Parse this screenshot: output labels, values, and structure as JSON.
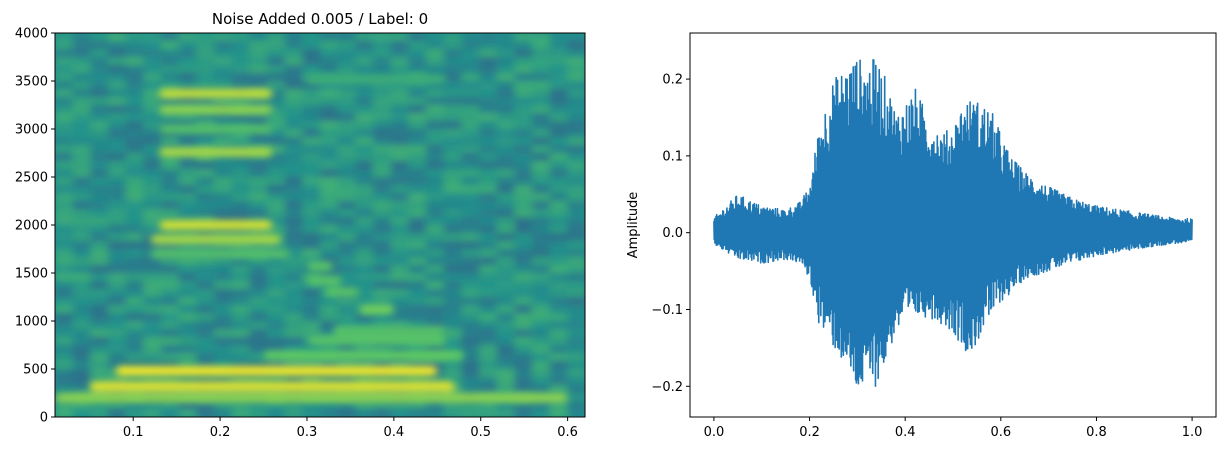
{
  "figure": {
    "spectrogram_title": "Noise Added 0.005 / Label: 0",
    "waveform_ylabel": "Amplitude"
  },
  "colors": {
    "axis": "#000000",
    "waveform_line": "#1f77b4",
    "viridis_low": "#440154",
    "viridis_mid": "#21918c",
    "viridis_high": "#fde725"
  },
  "chart_data": [
    {
      "type": "heatmap",
      "title": "Noise Added 0.005 / Label: 0",
      "xlabel": "",
      "ylabel": "",
      "xlim": [
        0.01,
        0.62
      ],
      "ylim": [
        0,
        4000
      ],
      "xticks": [
        0.1,
        0.2,
        0.3,
        0.4,
        0.5,
        0.6
      ],
      "xtick_labels": [
        "0.1",
        "0.2",
        "0.3",
        "0.4",
        "0.5",
        "0.6"
      ],
      "yticks": [
        0,
        500,
        1000,
        1500,
        2000,
        2500,
        3000,
        3500,
        4000
      ],
      "ytick_labels": [
        "0",
        "500",
        "1000",
        "1500",
        "2000",
        "2500",
        "3000",
        "3500",
        "4000"
      ],
      "colormap": "viridis",
      "background_level": 0.5,
      "bands": [
        {
          "t0": 0.01,
          "t1": 0.6,
          "f": 200,
          "level": 0.82
        },
        {
          "t0": 0.05,
          "t1": 0.47,
          "f": 320,
          "level": 0.95
        },
        {
          "t0": 0.08,
          "t1": 0.45,
          "f": 480,
          "level": 0.98
        },
        {
          "t0": 0.25,
          "t1": 0.48,
          "f": 640,
          "level": 0.75
        },
        {
          "t0": 0.3,
          "t1": 0.46,
          "f": 800,
          "level": 0.72
        },
        {
          "t0": 0.33,
          "t1": 0.46,
          "f": 900,
          "level": 0.7
        },
        {
          "t0": 0.36,
          "t1": 0.4,
          "f": 1120,
          "level": 0.78
        },
        {
          "t0": 0.32,
          "t1": 0.36,
          "f": 1300,
          "level": 0.72
        },
        {
          "t0": 0.3,
          "t1": 0.34,
          "f": 1420,
          "level": 0.72
        },
        {
          "t0": 0.3,
          "t1": 0.33,
          "f": 1570,
          "level": 0.72
        },
        {
          "t0": 0.12,
          "t1": 0.28,
          "f": 1700,
          "level": 0.7
        },
        {
          "t0": 0.12,
          "t1": 0.27,
          "f": 1850,
          "level": 0.86
        },
        {
          "t0": 0.13,
          "t1": 0.26,
          "f": 2000,
          "level": 0.93
        },
        {
          "t0": 0.13,
          "t1": 0.26,
          "f": 2760,
          "level": 0.86
        },
        {
          "t0": 0.13,
          "t1": 0.26,
          "f": 3000,
          "level": 0.7
        },
        {
          "t0": 0.13,
          "t1": 0.26,
          "f": 3200,
          "level": 0.82
        },
        {
          "t0": 0.13,
          "t1": 0.26,
          "f": 3370,
          "level": 0.9
        },
        {
          "t0": 0.3,
          "t1": 0.46,
          "f": 3520,
          "level": 0.62
        }
      ]
    },
    {
      "type": "line",
      "title": "",
      "xlabel": "",
      "ylabel": "Amplitude",
      "xlim": [
        -0.05,
        1.05
      ],
      "ylim": [
        -0.24,
        0.26
      ],
      "xticks": [
        0.0,
        0.2,
        0.4,
        0.6,
        0.8,
        1.0
      ],
      "xtick_labels": [
        "0.0",
        "0.2",
        "0.4",
        "0.6",
        "0.8",
        "1.0"
      ],
      "yticks": [
        -0.2,
        -0.1,
        0.0,
        0.1,
        0.2
      ],
      "ytick_labels": [
        "−0.2",
        "−0.1",
        "0.0",
        "0.1",
        "0.2"
      ],
      "series": [
        {
          "x": [
            0.0,
            0.05,
            0.1,
            0.15,
            0.18,
            0.2,
            0.22,
            0.25,
            0.28,
            0.3,
            0.32,
            0.34,
            0.36,
            0.38,
            0.4,
            0.42,
            0.45,
            0.48,
            0.5,
            0.52,
            0.54,
            0.56,
            0.58,
            0.6,
            0.62,
            0.65,
            0.7,
            0.75,
            0.8,
            0.85,
            0.9,
            0.95,
            1.0
          ],
          "upper": [
            0.02,
            0.05,
            0.035,
            0.03,
            0.04,
            0.06,
            0.14,
            0.2,
            0.22,
            0.23,
            0.22,
            0.23,
            0.2,
            0.16,
            0.17,
            0.19,
            0.15,
            0.13,
            0.14,
            0.17,
            0.175,
            0.17,
            0.16,
            0.13,
            0.1,
            0.08,
            0.06,
            0.045,
            0.035,
            0.03,
            0.025,
            0.02,
            0.018
          ],
          "lower": [
            -0.015,
            -0.035,
            -0.04,
            -0.035,
            -0.04,
            -0.06,
            -0.12,
            -0.15,
            -0.18,
            -0.21,
            -0.2,
            -0.2,
            -0.17,
            -0.13,
            -0.12,
            -0.11,
            -0.11,
            -0.12,
            -0.13,
            -0.15,
            -0.16,
            -0.13,
            -0.11,
            -0.09,
            -0.08,
            -0.06,
            -0.05,
            -0.04,
            -0.03,
            -0.025,
            -0.02,
            -0.015,
            -0.012
          ]
        }
      ]
    }
  ]
}
